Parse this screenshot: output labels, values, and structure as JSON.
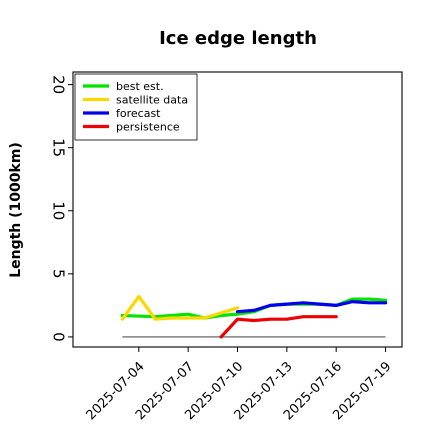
{
  "chart_data": {
    "type": "line",
    "title": "Ice edge length",
    "xlabel": "",
    "ylabel": "Length (1000km)",
    "xlim": [
      "2025-06-30",
      "2025-07-20"
    ],
    "ylim": [
      -0.8,
      21
    ],
    "yticks": [
      0,
      5,
      10,
      15,
      20
    ],
    "xticks": [
      "2025-07-04",
      "2025-07-07",
      "2025-07-10",
      "2025-07-13",
      "2025-07-16",
      "2025-07-19"
    ],
    "highlighted_xtick": "2025-07-10",
    "highlight_color": "#228b22",
    "grid": false,
    "legend_position": "upper left",
    "series": [
      {
        "name": "best est.",
        "color": "#00e400",
        "points": [
          [
            "2025-07-03",
            1.7
          ],
          [
            "2025-07-05",
            1.6
          ],
          [
            "2025-07-07",
            1.8
          ],
          [
            "2025-07-08",
            1.5
          ],
          [
            "2025-07-09",
            1.7
          ],
          [
            "2025-07-10",
            1.8
          ],
          [
            "2025-07-11",
            2.0
          ],
          [
            "2025-07-12",
            2.5
          ],
          [
            "2025-07-13",
            2.6
          ],
          [
            "2025-07-14",
            2.6
          ],
          [
            "2025-07-15",
            2.6
          ],
          [
            "2025-07-16",
            2.5
          ],
          [
            "2025-07-17",
            3.0
          ],
          [
            "2025-07-18",
            3.0
          ],
          [
            "2025-07-19",
            2.9
          ]
        ]
      },
      {
        "name": "satellite data",
        "color": "#ffd700",
        "points": [
          [
            "2025-07-03",
            1.4
          ],
          [
            "2025-07-04",
            3.2
          ],
          [
            "2025-07-05",
            1.4
          ],
          [
            "2025-07-06",
            1.5
          ],
          [
            "2025-07-07",
            1.5
          ],
          [
            "2025-07-08",
            1.5
          ],
          [
            "2025-07-09",
            1.9
          ],
          [
            "2025-07-10",
            2.3
          ]
        ]
      },
      {
        "name": "forecast",
        "color": "#0000ee",
        "points": [
          [
            "2025-07-10",
            2.0
          ],
          [
            "2025-07-11",
            2.1
          ],
          [
            "2025-07-12",
            2.5
          ],
          [
            "2025-07-13",
            2.6
          ],
          [
            "2025-07-14",
            2.7
          ],
          [
            "2025-07-15",
            2.6
          ],
          [
            "2025-07-16",
            2.5
          ],
          [
            "2025-07-17",
            2.8
          ],
          [
            "2025-07-18",
            2.7
          ],
          [
            "2025-07-19",
            2.7
          ]
        ]
      },
      {
        "name": "persistence",
        "color": "#ee0000",
        "points": [
          [
            "2025-07-09",
            0.0
          ],
          [
            "2025-07-10",
            1.4
          ],
          [
            "2025-07-11",
            1.3
          ],
          [
            "2025-07-12",
            1.4
          ],
          [
            "2025-07-13",
            1.4
          ],
          [
            "2025-07-14",
            1.6
          ],
          [
            "2025-07-15",
            1.6
          ],
          [
            "2025-07-16",
            1.6
          ]
        ]
      }
    ],
    "reference_line": {
      "color": "#808080",
      "y": 0,
      "x_start": "2025-07-03",
      "x_end": "2025-07-19"
    }
  }
}
